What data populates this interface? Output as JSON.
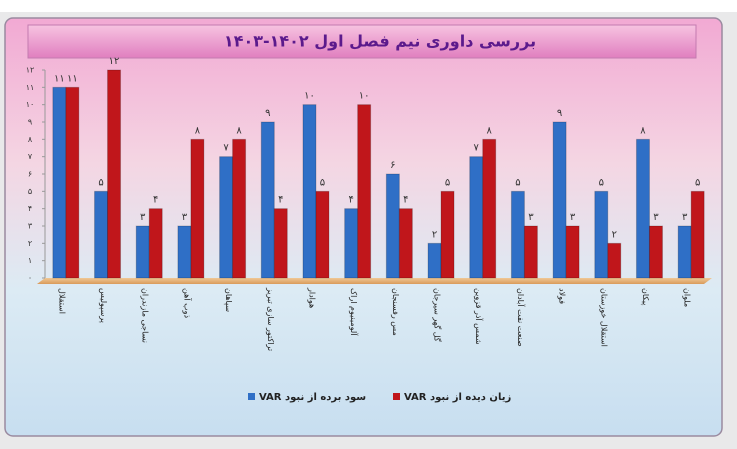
{
  "chart_data": {
    "type": "bar",
    "title": "بررسی داوری نیم فصل اول ۱۴۰۲-۱۴۰۳",
    "categories": [
      "استقلال",
      "پرسپولیس",
      "نساجی مازندران",
      "ذوب آهن",
      "سپاهان",
      "تراکتور سازی تبریز",
      "هوادار",
      "آلومینیوم اراک",
      "مس رفسنجان",
      "گل گهر سیرجان",
      "شمس آذر قزوین",
      "صنعت نفت آبادان",
      "فولاد",
      "استقلال خوزستان",
      "پیکان",
      "ملوان"
    ],
    "series": [
      {
        "name": "سود برده از نبود VAR",
        "color": "#2f6fc6",
        "values": [
          11,
          5,
          3,
          3,
          7,
          9,
          10,
          4,
          6,
          2,
          7,
          5,
          9,
          5,
          8,
          3
        ],
        "value_labels": [
          "۱۱",
          "۵",
          "۳",
          "۳",
          "۷",
          "۹",
          "۱۰",
          "۴",
          "۶",
          "۲",
          "۷",
          "۵",
          "۹",
          "۵",
          "۸",
          "۳"
        ]
      },
      {
        "name": "زیان دیده از نبود VAR",
        "color": "#c0161b",
        "values": [
          11,
          12,
          4,
          8,
          8,
          4,
          5,
          10,
          4,
          5,
          8,
          3,
          3,
          2,
          3,
          5
        ],
        "value_labels": [
          "۱۱",
          "۱۲",
          "۴",
          "۸",
          "۸",
          "۴",
          "۵",
          "۱۰",
          "۴",
          "۵",
          "۸",
          "۳",
          "۳",
          "۲",
          "۳",
          "۵"
        ]
      }
    ],
    "ylim": [
      0,
      12
    ],
    "yticks": [
      {
        "value": 0,
        "label": "۰"
      },
      {
        "value": 1,
        "label": "۱"
      },
      {
        "value": 2,
        "label": "۲"
      },
      {
        "value": 3,
        "label": "۳"
      },
      {
        "value": 4,
        "label": "۴"
      },
      {
        "value": 5,
        "label": "۵"
      },
      {
        "value": 6,
        "label": "۶"
      },
      {
        "value": 7,
        "label": "۷"
      },
      {
        "value": 8,
        "label": "۸"
      },
      {
        "value": 9,
        "label": "۹"
      },
      {
        "value": 10,
        "label": "۱۰"
      },
      {
        "value": 11,
        "label": "۱۱"
      },
      {
        "value": 12,
        "label": "۱۲"
      }
    ],
    "grid": false,
    "legend": "bottom"
  }
}
